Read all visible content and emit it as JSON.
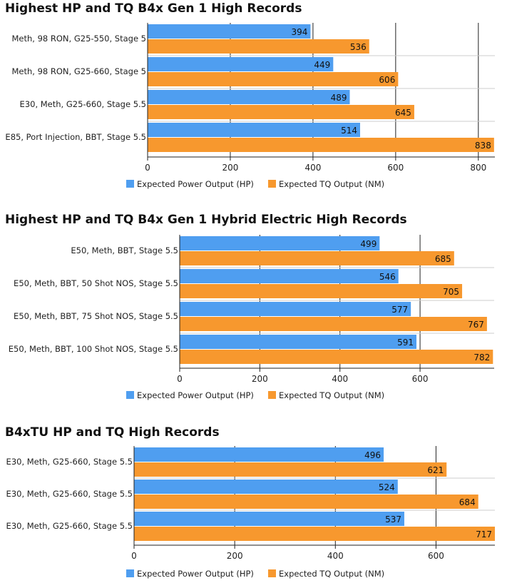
{
  "chart_data": [
    {
      "type": "bar",
      "orientation": "horizontal",
      "title": "Highest HP and TQ B4x Gen 1 High Records",
      "categories": [
        "Meth, 98 RON, G25-550, Stage 5",
        "Meth, 98 RON, G25-660, Stage 5",
        "E30, Meth, G25-660, Stage 5.5",
        "E85, Port Injection, BBT, Stage 5.5"
      ],
      "series": [
        {
          "name": "Expected Power Output (HP)",
          "values": [
            394,
            449,
            489,
            514
          ],
          "color": "#4f9ef0"
        },
        {
          "name": "Expected TQ Output (NM)",
          "values": [
            536,
            606,
            645,
            838
          ],
          "color": "#f7982e"
        }
      ],
      "xlim": [
        0,
        840
      ],
      "xticks": [
        0,
        200,
        400,
        600,
        800
      ],
      "grid": "vertical",
      "legend": "bottom"
    },
    {
      "type": "bar",
      "orientation": "horizontal",
      "title": "Highest HP and TQ B4x Gen 1 Hybrid Electric High Records",
      "categories": [
        "E50, Meth, BBT, Stage 5.5",
        "E50, Meth, BBT, 50 Shot NOS, Stage 5.5",
        "E50, Meth, BBT, 75 Shot NOS, Stage 5.5",
        "E50, Meth, BBT, 100 Shot NOS, Stage 5.5"
      ],
      "series": [
        {
          "name": "Expected Power Output (HP)",
          "values": [
            499,
            546,
            577,
            591
          ],
          "color": "#4f9ef0"
        },
        {
          "name": "Expected TQ Output (NM)",
          "values": [
            685,
            705,
            767,
            782
          ],
          "color": "#f7982e"
        }
      ],
      "xlim": [
        0,
        785
      ],
      "xticks": [
        0,
        200,
        400,
        600
      ],
      "grid": "vertical",
      "legend": "bottom"
    },
    {
      "type": "bar",
      "orientation": "horizontal",
      "title": "B4xTU HP and TQ High Records",
      "categories": [
        "E30, Meth, G25-660, Stage 5.5",
        "E30, Meth, G25-660, Stage 5.5",
        "E30, Meth, G25-660, Stage 5.5"
      ],
      "series": [
        {
          "name": "Expected Power Output (HP)",
          "values": [
            496,
            524,
            537
          ],
          "color": "#4f9ef0"
        },
        {
          "name": "Expected TQ Output (NM)",
          "values": [
            621,
            684,
            717
          ],
          "color": "#f7982e"
        }
      ],
      "xlim": [
        0,
        717
      ],
      "xticks": [
        0,
        200,
        400,
        600
      ],
      "grid": "vertical",
      "legend": "bottom"
    }
  ]
}
